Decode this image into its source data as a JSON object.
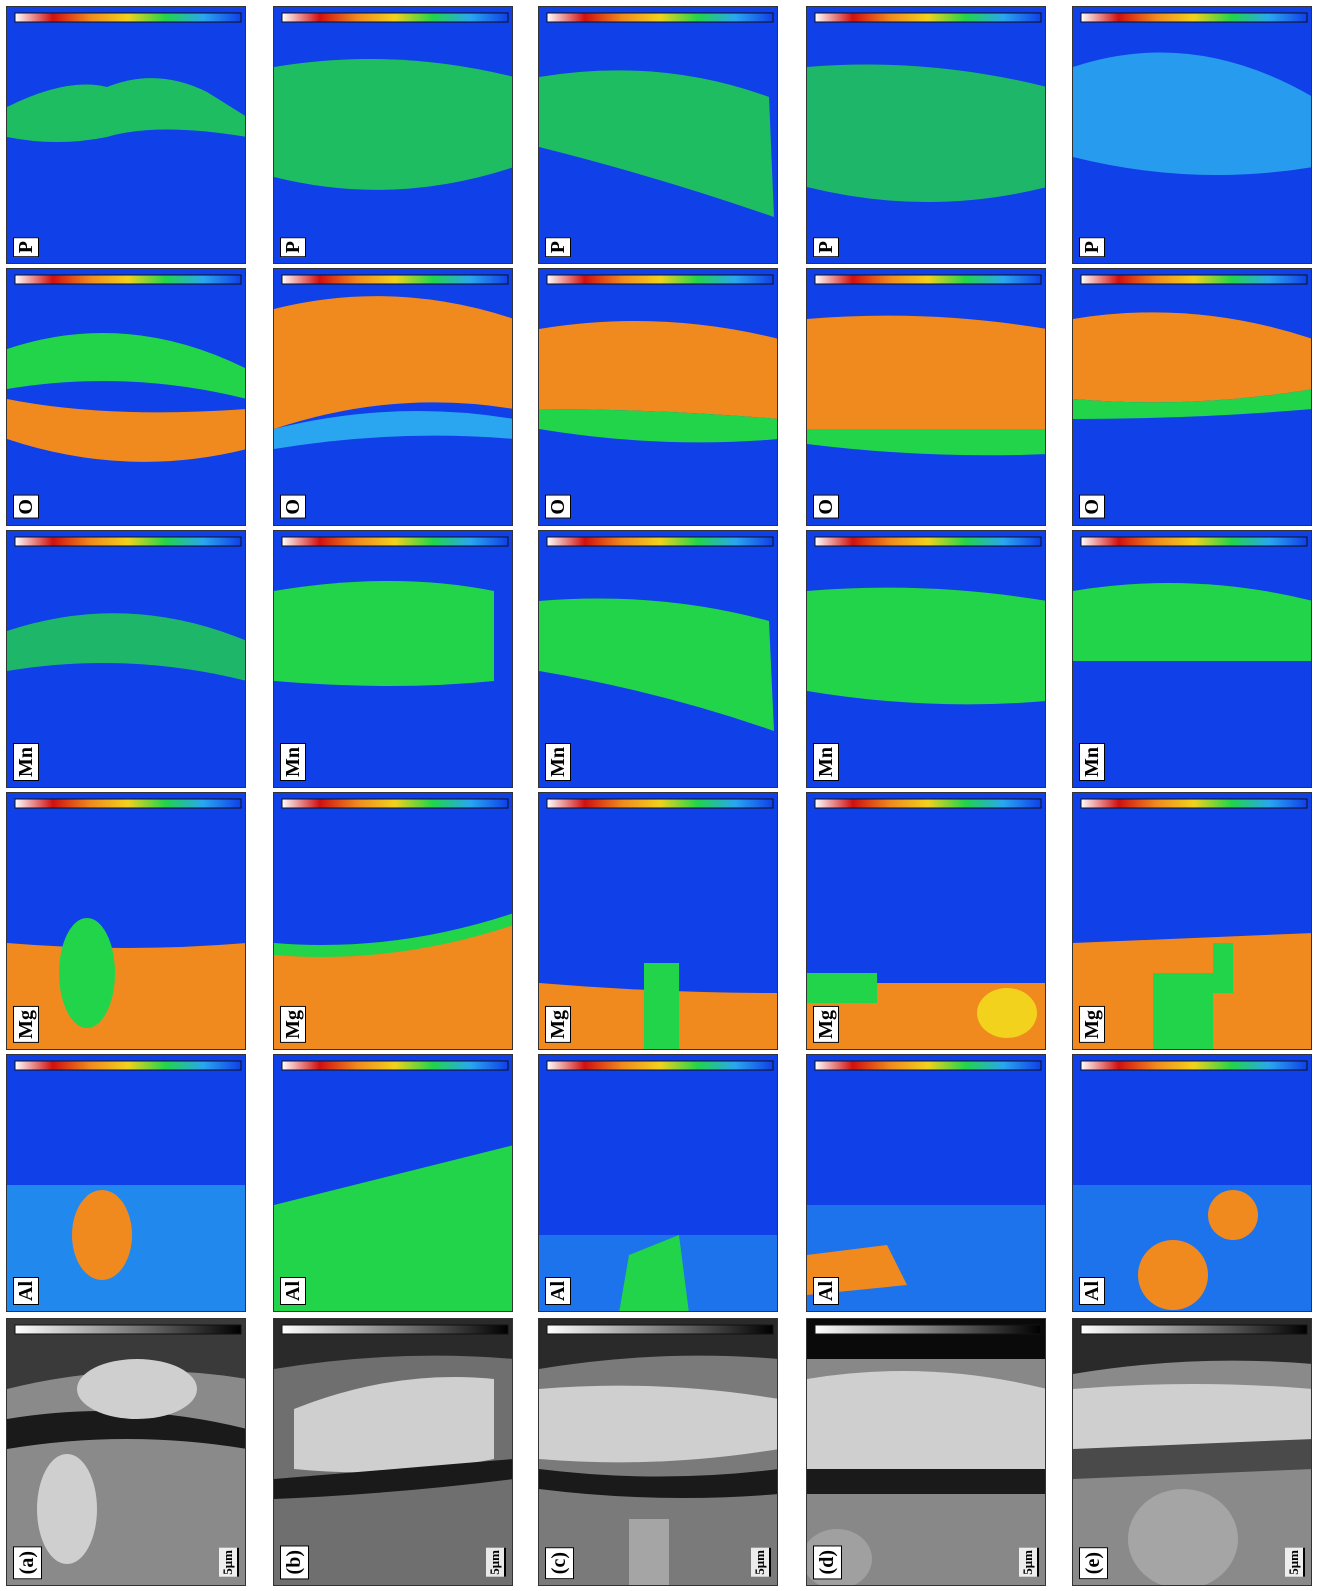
{
  "figure": {
    "columns": [
      {
        "tag": "(a)",
        "scale_bar": "5μm"
      },
      {
        "tag": "(b)",
        "scale_bar": "5μm"
      },
      {
        "tag": "(c)",
        "scale_bar": "5μm"
      },
      {
        "tag": "(d)",
        "scale_bar": "5μm"
      },
      {
        "tag": "(e)",
        "scale_bar": "5μm"
      }
    ],
    "element_labels": [
      "P",
      "O",
      "Mn",
      "Mg",
      "Al"
    ],
    "colors": {
      "background_blue": "#1040e8",
      "green": "#22d44a",
      "cyan": "#2aa6f0",
      "orange": "#f08a1e",
      "yellow": "#f2d21c",
      "sem_light": "#cfcfcf",
      "sem_dark": "#1a1a1a"
    }
  }
}
